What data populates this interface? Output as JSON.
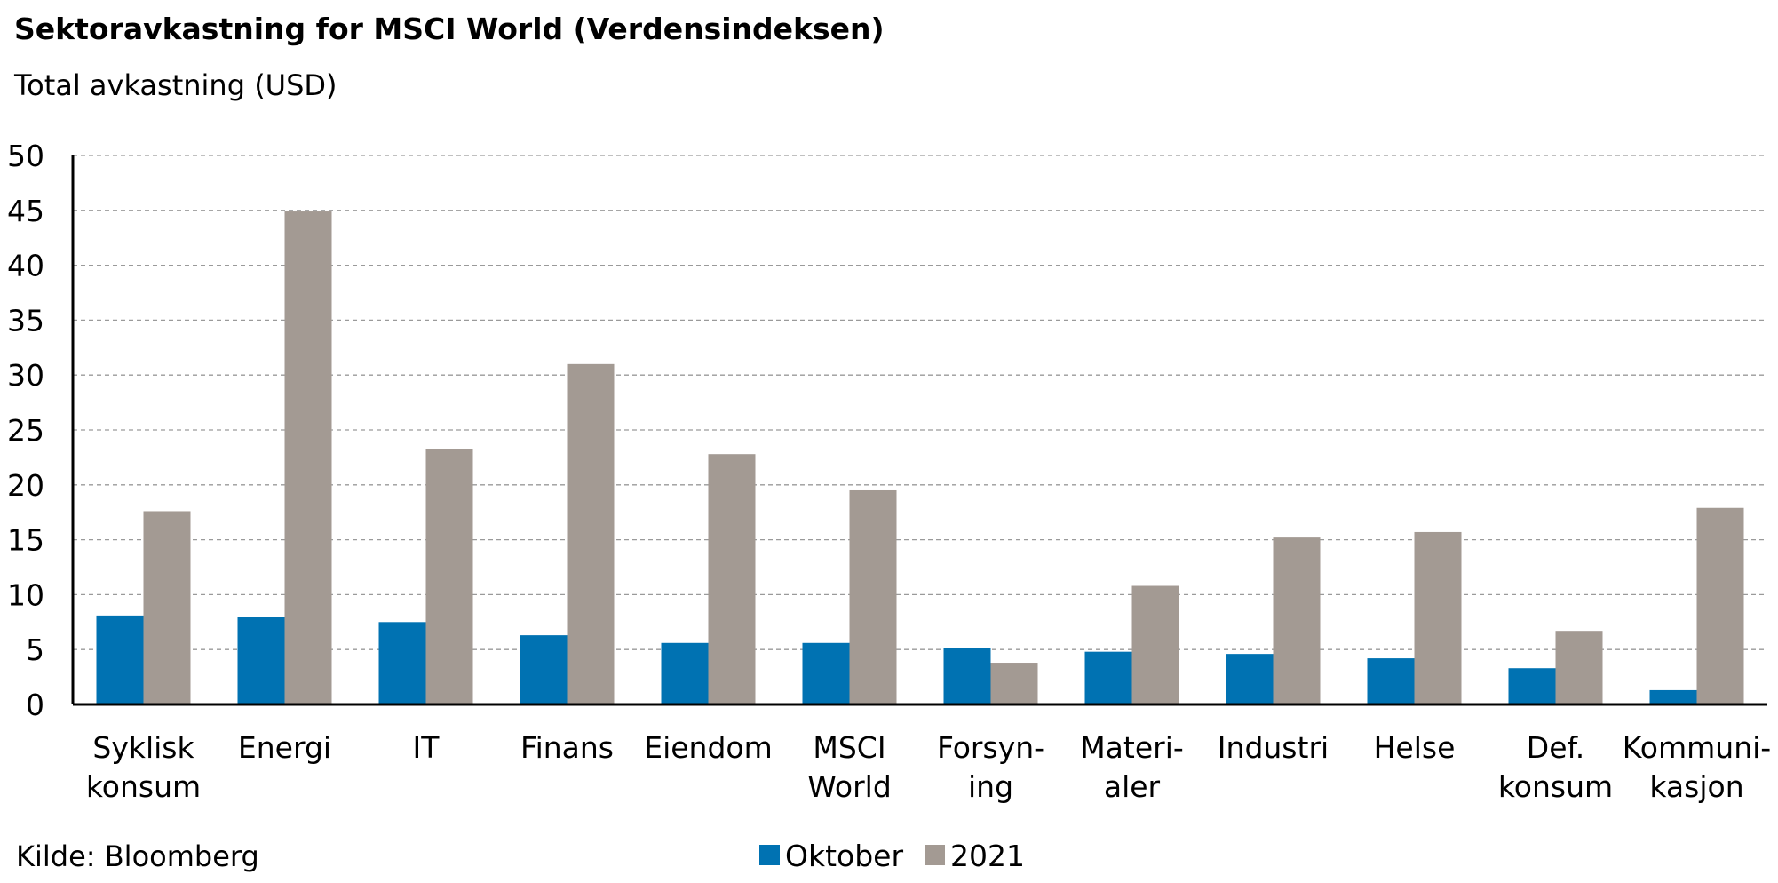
{
  "chart_data": {
    "type": "bar",
    "title": "Sektoravkastning for MSCI World (Verdensindeksen)",
    "subtitle": "Total avkastning (USD)",
    "source": "Kilde: Bloomberg",
    "categories": [
      [
        "Syklisk",
        "konsum"
      ],
      [
        "Energi"
      ],
      [
        "IT"
      ],
      [
        "Finans"
      ],
      [
        "Eiendom"
      ],
      [
        "MSCI",
        "World"
      ],
      [
        "Forsyn-",
        "ing"
      ],
      [
        "Materi-",
        "aler"
      ],
      [
        "Industri"
      ],
      [
        "Helse"
      ],
      [
        "Def.",
        "konsum"
      ],
      [
        "Kommuni-",
        "kasjon"
      ]
    ],
    "series": [
      {
        "name": "Oktober",
        "color": "#0072b2",
        "values": [
          8.1,
          8.0,
          7.5,
          6.3,
          5.6,
          5.6,
          5.1,
          4.8,
          4.6,
          4.2,
          3.3,
          1.3
        ]
      },
      {
        "name": "2021",
        "color": "#a39a93",
        "values": [
          17.6,
          44.9,
          23.3,
          31.0,
          22.8,
          19.5,
          3.8,
          10.8,
          15.2,
          15.7,
          6.7,
          17.9
        ]
      }
    ],
    "ylim": [
      0,
      50
    ],
    "yticks": [
      0,
      5,
      10,
      15,
      20,
      25,
      30,
      35,
      40,
      45,
      50
    ],
    "grid": true,
    "legend_position": "bottom-center"
  }
}
